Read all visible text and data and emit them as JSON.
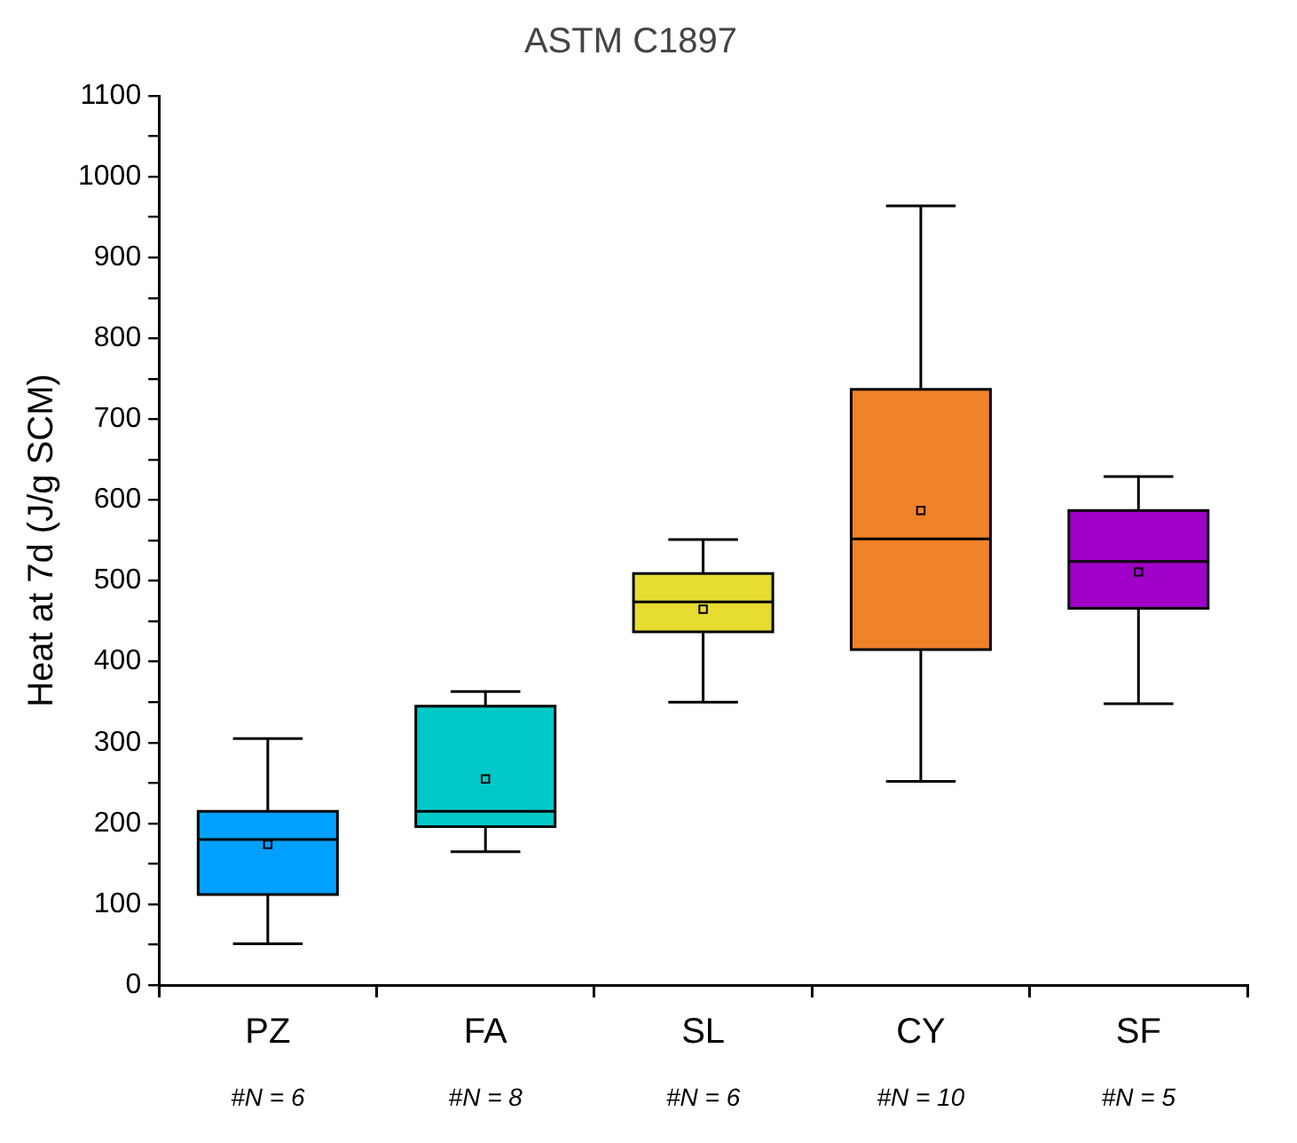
{
  "chart_data": {
    "type": "box",
    "title": "ASTM C1897",
    "ylabel": "Heat at 7d (J/g SCM)",
    "categories": [
      "PZ",
      "FA",
      "SL",
      "CY",
      "SF"
    ],
    "colors": [
      "#00a0ff",
      "#00c8c8",
      "#e6dc32",
      "#f0822a",
      "#a000c8"
    ],
    "boxes": [
      {
        "low": 51,
        "q1": 112,
        "median": 180,
        "q3": 215,
        "high": 305,
        "mean": 174
      },
      {
        "low": 165,
        "q1": 196,
        "median": 215,
        "q3": 345,
        "high": 363,
        "mean": 255
      },
      {
        "low": 350,
        "q1": 437,
        "median": 474,
        "q3": 509,
        "high": 551,
        "mean": 465
      },
      {
        "low": 252,
        "q1": 415,
        "median": 552,
        "q3": 737,
        "high": 964,
        "mean": 587
      },
      {
        "low": 348,
        "q1": 466,
        "median": 524,
        "q3": 587,
        "high": 629,
        "mean": 511
      }
    ],
    "ylim": [
      0,
      1100
    ],
    "yticks": [
      0,
      {
        "value": 50,
        "label": null
      },
      100,
      {
        "value": 150,
        "label": null
      },
      200,
      {
        "value": 250,
        "label": null
      },
      300,
      {
        "value": 350,
        "label": null
      },
      400,
      {
        "value": 450,
        "label": null
      },
      500,
      {
        "value": 550,
        "label": null
      },
      600,
      {
        "value": 650,
        "label": null
      },
      700,
      {
        "value": 750,
        "label": null
      },
      800,
      {
        "value": 850,
        "label": null
      },
      900,
      {
        "value": 950,
        "label": null
      },
      1000,
      {
        "value": 1050,
        "label": null
      },
      1100
    ],
    "marker": "square",
    "annotations": [
      "#N = 6",
      "#N = 8",
      "#N = 6",
      "#N = 10",
      "#N = 5"
    ]
  }
}
